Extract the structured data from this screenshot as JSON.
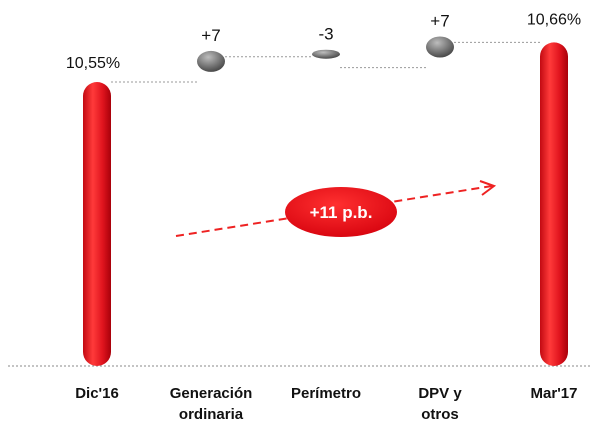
{
  "chart_data": {
    "type": "waterfall",
    "categories": [
      "Dic'16",
      "Generación ordinaria",
      "Perímetro",
      "DPV y otros",
      "Mar'17"
    ],
    "category_lines": [
      [
        "Dic'16"
      ],
      [
        "Generación",
        "ordinaria"
      ],
      [
        "Perímetro"
      ],
      [
        "DPV y",
        "otros"
      ],
      [
        "Mar'17"
      ]
    ],
    "start": {
      "label": "Dic'16",
      "value": 10.55,
      "display": "10,55%"
    },
    "steps": [
      {
        "label": "Generación ordinaria",
        "delta_bp": 7,
        "display": "+7"
      },
      {
        "label": "Perímetro",
        "delta_bp": -3,
        "display": "-3"
      },
      {
        "label": "DPV y otros",
        "delta_bp": 7,
        "display": "+7"
      }
    ],
    "end": {
      "label": "Mar'17",
      "value": 10.66,
      "display": "10,66%"
    },
    "total_change": {
      "display": "+11 p.b.",
      "delta_bp": 11
    },
    "unit": "%",
    "colors": {
      "bar": "#e0141e",
      "bar_dark": "#a8000a",
      "step": "#6e6e6e",
      "arrow": "#ee2222",
      "connector": "#999999"
    }
  }
}
